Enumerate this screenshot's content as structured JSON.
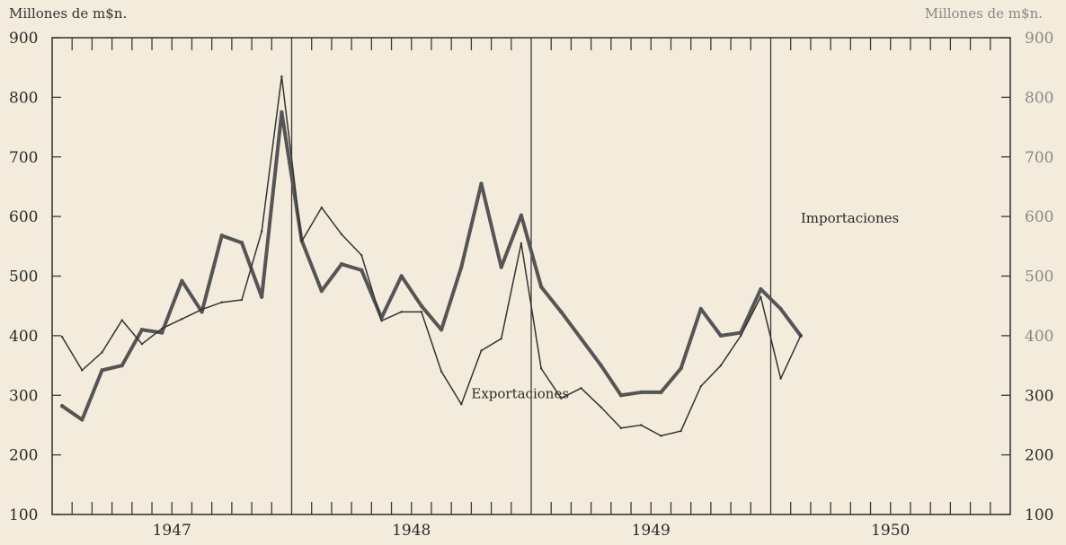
{
  "chart_data": {
    "type": "line",
    "title": "",
    "ylabel": "Millones de m$n.",
    "ylim": [
      100,
      900
    ],
    "yticks": [
      100,
      200,
      300,
      400,
      500,
      600,
      700,
      800,
      900
    ],
    "years": [
      "1947",
      "1948",
      "1949",
      "1950"
    ],
    "months_per_year": 12,
    "xlim": [
      0,
      48
    ],
    "grid": false,
    "series": [
      {
        "name": "Importaciones",
        "color": "#555555",
        "width": 4,
        "values": [
          282,
          259,
          342,
          350,
          410,
          405,
          492,
          440,
          568,
          556,
          465,
          775,
          560,
          475,
          520,
          510,
          430,
          500,
          450,
          410,
          515,
          655,
          515,
          602,
          482,
          440,
          395,
          350,
          300,
          305,
          305,
          345,
          445,
          400,
          405,
          478,
          445,
          400
        ]
      },
      {
        "name": "Exportaciones",
        "color": "#333333",
        "width": 1.5,
        "values": [
          398,
          342,
          372,
          426,
          386,
          412,
          428,
          444,
          456,
          460,
          575,
          835,
          558,
          615,
          570,
          535,
          425,
          440,
          440,
          340,
          285,
          375,
          395,
          555,
          345,
          295,
          312,
          280,
          245,
          250,
          232,
          240,
          315,
          350,
          400,
          465,
          328,
          400
        ]
      }
    ],
    "annotations": [
      {
        "text": "Importaciones",
        "x": 37.5,
        "y": 590
      },
      {
        "text": "Exportaciones",
        "x": 21.0,
        "y": 295
      }
    ]
  }
}
